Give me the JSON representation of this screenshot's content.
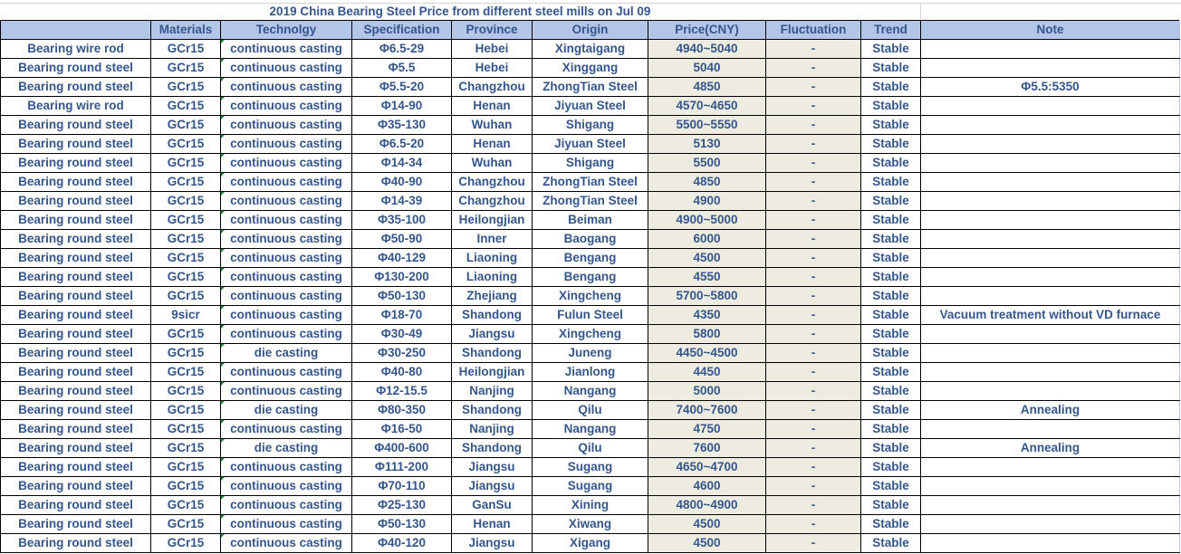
{
  "title": "2019 China Bearing Steel Price from different steel mills on Jul 09",
  "colors": {
    "header_bg": "#B4C6E7",
    "price_bg": "#EEECE1",
    "text": "#34568B"
  },
  "headers": [
    "",
    "Materials",
    "Technolgy",
    "Specification",
    "Province",
    "Origin",
    "Price(CNY)",
    "Fluctuation",
    "Trend",
    "Note"
  ],
  "rows": [
    [
      "Bearing wire rod",
      "GCr15",
      "continuous casting",
      "Φ6.5-29",
      "Hebei",
      "Xingtaigang",
      "4940~5040",
      "-",
      "Stable",
      ""
    ],
    [
      "Bearing round steel",
      "GCr15",
      "continuous casting",
      "Φ5.5",
      "Hebei",
      "Xinggang",
      "5040",
      "-",
      "Stable",
      ""
    ],
    [
      "Bearing round steel",
      "GCr15",
      "continuous casting",
      "Φ5.5-20",
      "Changzhou",
      "ZhongTian Steel",
      "4850",
      "-",
      "Stable",
      "Φ5.5:5350"
    ],
    [
      "Bearing wire rod",
      "GCr15",
      "continuous casting",
      "Φ14-90",
      "Henan",
      "Jiyuan Steel",
      "4570~4650",
      "-",
      "Stable",
      ""
    ],
    [
      "Bearing round steel",
      "GCr15",
      "continuous casting",
      "Φ35-130",
      "Wuhan",
      "Shigang",
      "5500~5550",
      "-",
      "Stable",
      ""
    ],
    [
      "Bearing round steel",
      "GCr15",
      "continuous casting",
      "Φ6.5-20",
      "Henan",
      "Jiyuan Steel",
      "5130",
      "-",
      "Stable",
      ""
    ],
    [
      "Bearing round steel",
      "GCr15",
      "continuous casting",
      "Φ14-34",
      "Wuhan",
      "Shigang",
      "5500",
      "-",
      "Stable",
      ""
    ],
    [
      "Bearing round steel",
      "GCr15",
      "continuous casting",
      "Φ40-90",
      "Changzhou",
      "ZhongTian Steel",
      "4850",
      "-",
      "Stable",
      ""
    ],
    [
      "Bearing round steel",
      "GCr15",
      "continuous casting",
      "Φ14-39",
      "Changzhou",
      "ZhongTian Steel",
      "4900",
      "-",
      "Stable",
      ""
    ],
    [
      "Bearing round steel",
      "GCr15",
      "continuous casting",
      "Φ35-100",
      "Heilongjian",
      "Beiman",
      "4900~5000",
      "-",
      "Stable",
      ""
    ],
    [
      "Bearing round steel",
      "GCr15",
      "continuous casting",
      "Φ50-90",
      "Inner",
      "Baogang",
      "6000",
      "-",
      "Stable",
      ""
    ],
    [
      "Bearing round steel",
      "GCr15",
      "continuous casting",
      "Φ40-129",
      "Liaoning",
      "Bengang",
      "4500",
      "-",
      "Stable",
      ""
    ],
    [
      "Bearing round steel",
      "GCr15",
      "continuous casting",
      "Φ130-200",
      "Liaoning",
      "Bengang",
      "4550",
      "-",
      "Stable",
      ""
    ],
    [
      "Bearing round steel",
      "GCr15",
      "continuous casting",
      "Φ50-130",
      "Zhejiang",
      "Xingcheng",
      "5700~5800",
      "-",
      "Stable",
      ""
    ],
    [
      "Bearing round steel",
      "9sicr",
      "continuous casting",
      "Φ18-70",
      "Shandong",
      "Fulun Steel",
      "4350",
      "-",
      "Stable",
      "Vacuum treatment without VD furnace"
    ],
    [
      "Bearing round steel",
      "GCr15",
      "continuous casting",
      "Φ30-49",
      "Jiangsu",
      "Xingcheng",
      "5800",
      "-",
      "Stable",
      ""
    ],
    [
      "Bearing round steel",
      "GCr15",
      "die casting",
      "Φ30-250",
      "Shandong",
      "Juneng",
      "4450~4500",
      "-",
      "Stable",
      ""
    ],
    [
      "Bearing round steel",
      "GCr15",
      "continuous casting",
      "Φ40-80",
      "Heilongjian",
      "Jianlong",
      "4450",
      "-",
      "Stable",
      ""
    ],
    [
      "Bearing round steel",
      "GCr15",
      "continuous casting",
      "Φ12-15.5",
      "Nanjing",
      "Nangang",
      "5000",
      "-",
      "Stable",
      ""
    ],
    [
      "Bearing round steel",
      "GCr15",
      "die casting",
      "Φ80-350",
      "Shandong",
      "Qilu",
      "7400~7600",
      "-",
      "Stable",
      "Annealing"
    ],
    [
      "Bearing round steel",
      "GCr15",
      "continuous casting",
      "Φ16-50",
      "Nanjing",
      "Nangang",
      "4750",
      "-",
      "Stable",
      ""
    ],
    [
      "Bearing round steel",
      "GCr15",
      "die casting",
      "Φ400-600",
      "Shandong",
      "Qilu",
      "7600",
      "-",
      "Stable",
      "Annealing"
    ],
    [
      "Bearing round steel",
      "GCr15",
      "continuous casting",
      "Φ111-200",
      "Jiangsu",
      "Sugang",
      "4650~4700",
      "-",
      "Stable",
      ""
    ],
    [
      "Bearing round steel",
      "GCr15",
      "continuous casting",
      "Φ70-110",
      "Jiangsu",
      "Sugang",
      "4600",
      "-",
      "Stable",
      ""
    ],
    [
      "Bearing round steel",
      "GCr15",
      "continuous casting",
      "Φ25-130",
      "GanSu",
      "Xining",
      "4800~4900",
      "-",
      "Stable",
      ""
    ],
    [
      "Bearing round steel",
      "GCr15",
      "continuous casting",
      "Φ50-130",
      "Henan",
      "Xiwang",
      "4500",
      "-",
      "Stable",
      ""
    ],
    [
      "Bearing round steel",
      "GCr15",
      "continuous casting",
      "Φ40-120",
      "Jiangsu",
      "Xigang",
      "4500",
      "-",
      "Stable",
      ""
    ]
  ]
}
